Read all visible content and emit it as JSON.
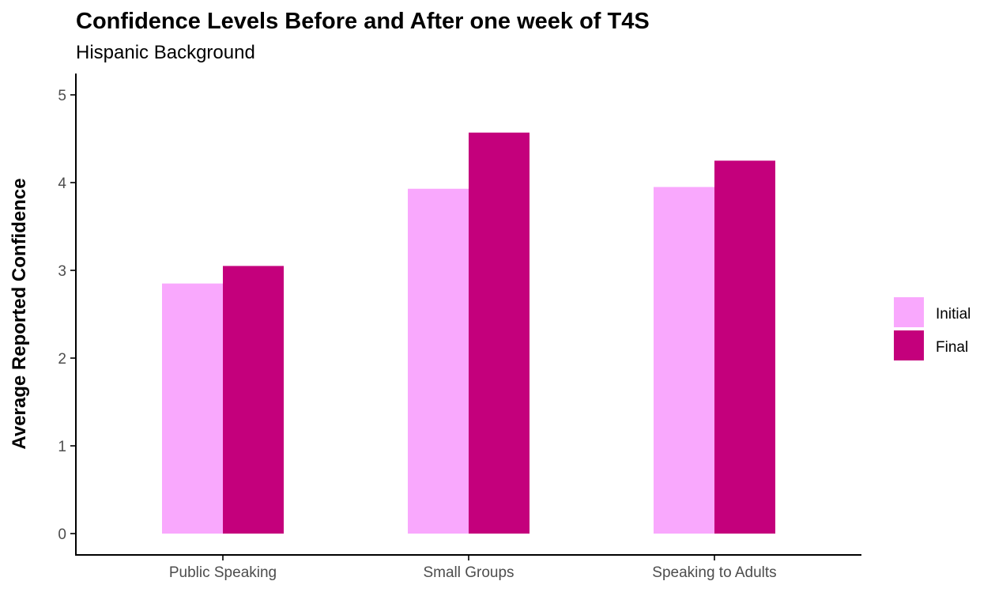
{
  "chart_data": {
    "type": "bar",
    "title": "Confidence Levels Before and After one week of T4S",
    "subtitle": "Hispanic Background",
    "xlabel": "",
    "ylabel": "Average Reported Confidence",
    "categories": [
      "Public Speaking",
      "Small Groups",
      "Speaking to Adults"
    ],
    "series": [
      {
        "name": "Initial",
        "color": "#f9a8fd",
        "values": [
          2.85,
          3.93,
          3.95
        ]
      },
      {
        "name": "Final",
        "color": "#c4007c",
        "values": [
          3.05,
          4.57,
          4.25
        ]
      }
    ],
    "ylim": [
      0,
      5
    ],
    "yticks": [
      0,
      1,
      2,
      3,
      4,
      5
    ],
    "grid": false,
    "legend_position": "right"
  }
}
